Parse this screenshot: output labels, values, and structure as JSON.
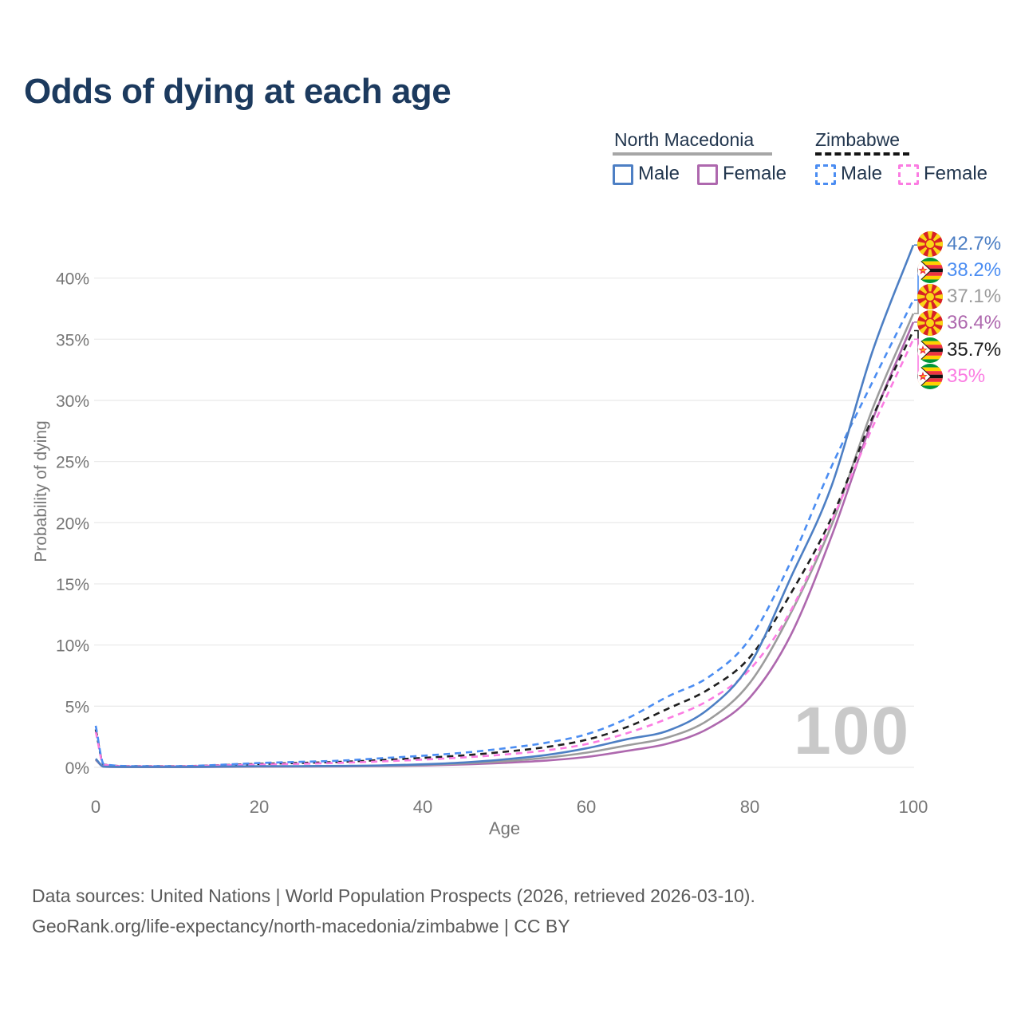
{
  "header": {
    "title": "Odds of dying at each age"
  },
  "legend": {
    "groups": [
      {
        "label": "North Macedonia",
        "line_style": "solid",
        "line_color": "#a6a6a6",
        "items": [
          {
            "label": "Male",
            "color": "#4d7fc4",
            "style": "solid"
          },
          {
            "label": "Female",
            "color": "#ae68ae",
            "style": "solid"
          }
        ]
      },
      {
        "label": "Zimbabwe",
        "line_style": "dashed",
        "line_color": "#141414",
        "items": [
          {
            "label": "Male",
            "color": "#4b8df2",
            "style": "dashed"
          },
          {
            "label": "Female",
            "color": "#fb7ce2",
            "style": "dashed"
          }
        ]
      }
    ]
  },
  "chart_data": {
    "type": "line",
    "title": "Odds of dying at each age",
    "xlabel": "Age",
    "ylabel": "Probability of dying",
    "watermark": "100",
    "xlim": [
      0,
      100
    ],
    "ylim": [
      0,
      43.5
    ],
    "grid": "horizontal",
    "legend_position": "top-right",
    "x_ticks": {
      "values": [
        0,
        20,
        40,
        60,
        80,
        100
      ],
      "labels": [
        "0",
        "20",
        "40",
        "60",
        "80",
        "100"
      ]
    },
    "y_ticks": {
      "values": [
        0,
        5,
        10,
        15,
        20,
        25,
        30,
        35,
        40
      ],
      "labels": [
        "0%",
        "5%",
        "10%",
        "15%",
        "20%",
        "25%",
        "30%",
        "35%",
        "40%"
      ]
    },
    "ages": [
      0,
      1,
      5,
      10,
      15,
      20,
      25,
      30,
      35,
      40,
      45,
      50,
      55,
      60,
      65,
      70,
      75,
      80,
      85,
      90,
      95,
      100
    ],
    "series": [
      {
        "id": "north-macedonia-male",
        "name": "North Macedonia Male",
        "country": "North Macedonia",
        "sex": "Male",
        "style": "solid",
        "color": "#4d7fc4",
        "end_label": "42.7%",
        "values": [
          0.7,
          0.06,
          0.03,
          0.03,
          0.06,
          0.09,
          0.1,
          0.12,
          0.16,
          0.25,
          0.4,
          0.65,
          1.0,
          1.55,
          2.3,
          3.0,
          4.8,
          8.4,
          15.5,
          23.0,
          34.0,
          42.7
        ]
      },
      {
        "id": "zimbabwe-male",
        "name": "Zimbabwe Male",
        "country": "Zimbabwe",
        "sex": "Male",
        "style": "dashed",
        "color": "#4b8df2",
        "end_label": "38.2%",
        "values": [
          3.4,
          0.25,
          0.1,
          0.1,
          0.2,
          0.35,
          0.45,
          0.55,
          0.75,
          0.95,
          1.2,
          1.55,
          2.0,
          2.7,
          4.0,
          5.8,
          7.4,
          10.5,
          16.8,
          24.6,
          31.5,
          38.2
        ]
      },
      {
        "id": "north-macedonia-both",
        "name": "North Macedonia (both sexes)",
        "country": "North Macedonia",
        "sex": "Both",
        "style": "solid",
        "color": "#9c9c9c",
        "end_label": "37.1%",
        "values": [
          0.65,
          0.05,
          0.03,
          0.03,
          0.05,
          0.07,
          0.08,
          0.1,
          0.13,
          0.2,
          0.32,
          0.5,
          0.78,
          1.2,
          1.8,
          2.45,
          3.9,
          6.9,
          12.6,
          19.8,
          29.3,
          37.1
        ]
      },
      {
        "id": "north-macedonia-female",
        "name": "North Macedonia Female",
        "country": "North Macedonia",
        "sex": "Female",
        "style": "solid",
        "color": "#ae68ae",
        "end_label": "36.4%",
        "values": [
          0.6,
          0.05,
          0.02,
          0.02,
          0.04,
          0.05,
          0.06,
          0.08,
          0.1,
          0.15,
          0.24,
          0.37,
          0.55,
          0.85,
          1.35,
          1.95,
          3.2,
          5.7,
          10.8,
          18.9,
          28.4,
          36.4
        ]
      },
      {
        "id": "zimbabwe-both",
        "name": "Zimbabwe (both sexes)",
        "country": "Zimbabwe",
        "sex": "Both",
        "style": "dashed",
        "color": "#1f1f1f",
        "end_label": "35.7%",
        "values": [
          3.1,
          0.22,
          0.09,
          0.09,
          0.17,
          0.28,
          0.36,
          0.45,
          0.6,
          0.77,
          0.98,
          1.27,
          1.65,
          2.25,
          3.3,
          4.8,
          6.4,
          9.0,
          14.2,
          20.4,
          28.6,
          35.7
        ]
      },
      {
        "id": "zimbabwe-female",
        "name": "Zimbabwe Female",
        "country": "Zimbabwe",
        "sex": "Female",
        "style": "dashed",
        "color": "#fb7ce2",
        "end_label": "35%",
        "values": [
          2.9,
          0.2,
          0.08,
          0.08,
          0.15,
          0.23,
          0.29,
          0.37,
          0.49,
          0.63,
          0.81,
          1.05,
          1.38,
          1.9,
          2.8,
          4.0,
          5.5,
          8.0,
          12.8,
          20.1,
          27.8,
          35.0
        ]
      }
    ]
  },
  "end_labels": [
    {
      "flag": "north-macedonia-flag-icon",
      "value": "42.7%",
      "series_index": 0
    },
    {
      "flag": "zimbabwe-flag-icon",
      "value": "38.2%",
      "series_index": 1
    },
    {
      "flag": "north-macedonia-flag-icon",
      "value": "37.1%",
      "series_index": 2
    },
    {
      "flag": "north-macedonia-flag-icon",
      "value": "36.4%",
      "series_index": 3
    },
    {
      "flag": "zimbabwe-flag-icon",
      "value": "35.7%",
      "series_index": 4
    },
    {
      "flag": "zimbabwe-flag-icon",
      "value": "35%",
      "series_index": 5
    }
  ],
  "footer": {
    "line1": "Data sources: United Nations | World Population Prospects (2026, retrieved 2026-03-10).",
    "line2": "GeoRank.org/life-expectancy/north-macedonia/zimbabwe | CC BY"
  }
}
